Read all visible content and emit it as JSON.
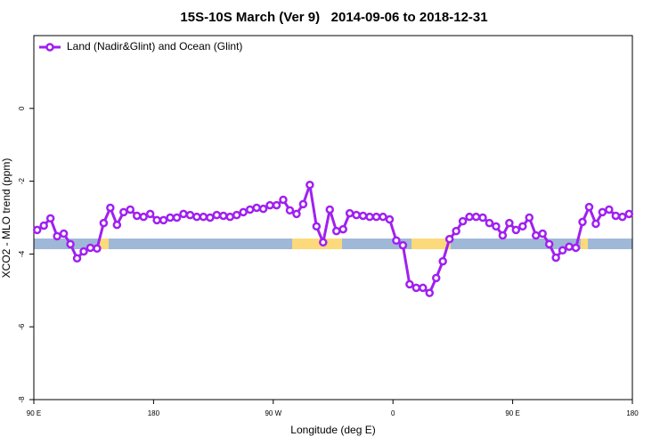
{
  "chart_data": {
    "type": "line",
    "title": "15S-10S March (Ver 9)   2014-09-06 to 2018-12-31",
    "xlabel": "Longitude (deg E)",
    "ylabel": "XCO2 - MLO trend (ppm)",
    "xlim": [
      90,
      540
    ],
    "ylim": [
      -8,
      2
    ],
    "xticks": [
      {
        "value": 90,
        "label": "90 E"
      },
      {
        "value": 180,
        "label": "180"
      },
      {
        "value": 270,
        "label": "90 W"
      },
      {
        "value": 360,
        "label": "0"
      },
      {
        "value": 450,
        "label": "90 E"
      },
      {
        "value": 540,
        "label": "180"
      }
    ],
    "yticks": [
      -8,
      -6,
      -4,
      -2,
      0
    ],
    "legend": "upper left",
    "x": [
      92.5,
      97.5,
      102.5,
      107.5,
      112.5,
      117.5,
      122.5,
      127.5,
      132.5,
      137.5,
      142.5,
      147.5,
      152.5,
      157.5,
      162.5,
      167.5,
      172.5,
      177.5,
      182.5,
      187.5,
      192.5,
      197.5,
      202.5,
      207.5,
      212.5,
      217.5,
      222.5,
      227.5,
      232.5,
      237.5,
      242.5,
      247.5,
      252.5,
      257.5,
      262.5,
      267.5,
      272.5,
      277.5,
      282.5,
      287.5,
      292.5,
      297.5,
      302.5,
      307.5,
      312.5,
      317.5,
      322.5,
      327.5,
      332.5,
      337.5,
      342.5,
      347.5,
      352.5,
      357.5,
      362.5,
      367.5,
      372.5,
      377.5,
      382.5,
      387.5,
      392.5,
      397.5,
      402.5,
      407.5,
      412.5,
      417.5,
      422.5,
      427.5,
      432.5,
      437.5,
      442.5,
      447.5,
      452.5,
      457.5,
      462.5,
      467.5,
      472.5,
      477.5,
      482.5,
      487.5,
      492.5,
      497.5,
      502.5,
      507.5,
      512.5,
      517.5,
      522.5,
      527.5,
      532.5,
      537.5
    ],
    "series": [
      {
        "name": "Land (Nadir&Glint) and Ocean (Glint)",
        "color": "#a020f0",
        "values": [
          -3.34,
          -3.22,
          -3.02,
          -3.51,
          -3.44,
          -3.73,
          -4.12,
          -3.93,
          -3.83,
          -3.85,
          -3.15,
          -2.73,
          -3.2,
          -2.85,
          -2.78,
          -2.95,
          -2.98,
          -2.9,
          -3.07,
          -3.07,
          -3.0,
          -3.0,
          -2.9,
          -2.93,
          -2.98,
          -2.98,
          -3.0,
          -2.93,
          -2.95,
          -2.98,
          -2.93,
          -2.85,
          -2.78,
          -2.73,
          -2.76,
          -2.66,
          -2.66,
          -2.51,
          -2.8,
          -2.9,
          -2.63,
          -2.1,
          -3.24,
          -3.68,
          -2.78,
          -3.37,
          -3.32,
          -2.88,
          -2.93,
          -2.95,
          -2.98,
          -2.98,
          -2.98,
          -3.05,
          -3.63,
          -3.76,
          -4.83,
          -4.93,
          -4.93,
          -5.07,
          -4.66,
          -4.2,
          -3.59,
          -3.37,
          -3.1,
          -2.98,
          -2.98,
          -3.0,
          -3.15,
          -3.24,
          -3.49,
          -3.15,
          -3.34,
          -3.24,
          -3.0,
          -3.49,
          -3.44,
          -3.73,
          -4.1,
          -3.9,
          -3.8,
          -3.83,
          -3.12,
          -2.71,
          -3.17,
          -2.85,
          -2.78,
          -2.95,
          -2.98,
          -2.9
        ]
      }
    ]
  }
}
